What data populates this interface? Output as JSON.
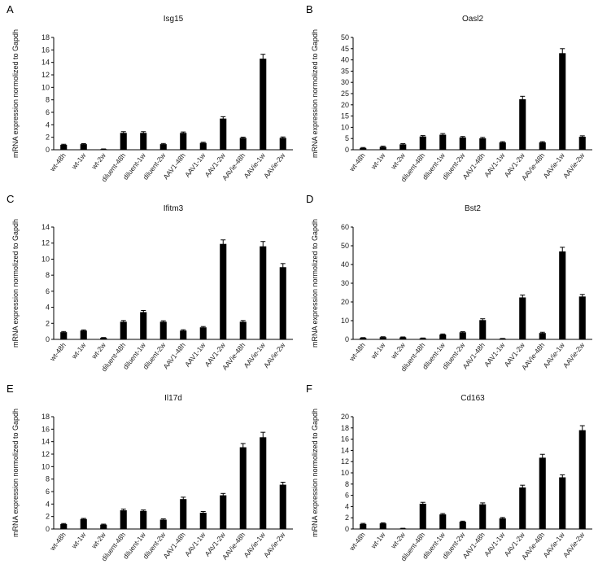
{
  "chart_data": [
    {
      "panel": "A",
      "type": "bar",
      "title": "Isg15",
      "ylabel": "mRNA expression normolized to Gapdh",
      "xlabel": "",
      "ylim": [
        0,
        18
      ],
      "yticks": [
        0,
        2,
        4,
        6,
        8,
        10,
        12,
        14,
        16,
        18
      ],
      "categories": [
        "wt-48h",
        "wt-1w",
        "wt-2w",
        "diluent-48h",
        "diluent-1w",
        "diluent-2w",
        "AAV1-48h",
        "AAV1-1w",
        "AAV1-2w",
        "AAVie-48h",
        "AAVie-1w",
        "AAVie-2w"
      ],
      "values": [
        0.8,
        0.9,
        0.1,
        2.7,
        2.7,
        0.9,
        2.7,
        1.1,
        5.0,
        1.9,
        14.6,
        1.9
      ],
      "errors": [
        0.08,
        0.08,
        0.03,
        0.2,
        0.2,
        0.1,
        0.15,
        0.1,
        0.3,
        0.12,
        0.7,
        0.15
      ]
    },
    {
      "panel": "B",
      "type": "bar",
      "title": "Oasl2",
      "ylabel": "mRNA expression normolized to Gapdh",
      "xlabel": "",
      "ylim": [
        0,
        50
      ],
      "yticks": [
        0,
        5,
        10,
        15,
        20,
        25,
        30,
        35,
        40,
        45,
        50
      ],
      "categories": [
        "wt-48h",
        "wt-1w",
        "wt-2w",
        "diluent-48h",
        "diluent-1w",
        "diluent-2w",
        "AAV1-48h",
        "AAV1-1w",
        "AAV1-2w",
        "AAVie-48h",
        "AAVie-1w",
        "AAVie-2w"
      ],
      "values": [
        0.8,
        1.3,
        2.4,
        5.9,
        6.7,
        5.5,
        5.1,
        3.3,
        22.5,
        3.3,
        43.0,
        5.8
      ],
      "errors": [
        0.2,
        0.3,
        0.3,
        0.4,
        0.5,
        0.4,
        0.4,
        0.3,
        1.3,
        0.3,
        2.0,
        0.4
      ]
    },
    {
      "panel": "C",
      "type": "bar",
      "title": "Ifitm3",
      "ylabel": "mRNA expression normolized to Gapdh",
      "xlabel": "",
      "ylim": [
        0,
        14
      ],
      "yticks": [
        0,
        2,
        4,
        6,
        8,
        10,
        12,
        14
      ],
      "categories": [
        "wt-48h",
        "wt-1w",
        "wt-2w",
        "diluent-48h",
        "diluent-1w",
        "diluent-2w",
        "AAV1-48h",
        "AAV1-1w",
        "AAV1-2w",
        "AAVie-48h",
        "AAVie-1w",
        "AAVie-2w"
      ],
      "values": [
        0.9,
        1.1,
        0.2,
        2.2,
        3.4,
        2.2,
        1.1,
        1.5,
        11.9,
        2.2,
        11.6,
        9.0
      ],
      "errors": [
        0.08,
        0.08,
        0.03,
        0.15,
        0.2,
        0.12,
        0.1,
        0.1,
        0.5,
        0.15,
        0.6,
        0.45
      ]
    },
    {
      "panel": "D",
      "type": "bar",
      "title": "Bst2",
      "ylabel": "mRNA expression normolized to Gapdh",
      "xlabel": "",
      "ylim": [
        0,
        60
      ],
      "yticks": [
        0,
        10,
        20,
        30,
        40,
        50,
        60
      ],
      "categories": [
        "wt-48h",
        "wt-1w",
        "wt-2w",
        "diluent-48h",
        "diluent-1w",
        "diluent-2w",
        "AAV1-48h",
        "AAV1-1w",
        "AAV1-2w",
        "AAVie-48h",
        "AAVie-1w",
        "AAVie-2w"
      ],
      "values": [
        0.8,
        1.2,
        1.1,
        0.6,
        2.6,
        3.8,
        10.3,
        0.4,
        22.4,
        3.4,
        47.0,
        22.9
      ],
      "errors": [
        0.15,
        0.2,
        0.2,
        0.15,
        0.3,
        0.3,
        0.7,
        0.1,
        1.3,
        0.4,
        2.2,
        1.1
      ]
    },
    {
      "panel": "E",
      "type": "bar",
      "title": "Il17d",
      "ylabel": "mRNA expression normolized to Gapdh",
      "xlabel": "",
      "ylim": [
        0,
        18
      ],
      "yticks": [
        0,
        2,
        4,
        6,
        8,
        10,
        12,
        14,
        16,
        18
      ],
      "categories": [
        "wt-48h",
        "wt-1w",
        "wt-2w",
        "diluent-48h",
        "diluent-1w",
        "diluent-2w",
        "AAV1-48h",
        "AAV1-1w",
        "AAV1-2w",
        "AAVie-48h",
        "AAVie-1w",
        "AAVie-2w"
      ],
      "values": [
        0.8,
        1.6,
        0.7,
        3.0,
        2.9,
        1.5,
        4.8,
        2.6,
        5.4,
        13.1,
        14.7,
        7.1
      ],
      "errors": [
        0.08,
        0.1,
        0.08,
        0.2,
        0.15,
        0.12,
        0.3,
        0.2,
        0.3,
        0.6,
        0.8,
        0.4
      ]
    },
    {
      "panel": "F",
      "type": "bar",
      "title": "Cd163",
      "ylabel": "mRNA expression normolized to Gapdh",
      "xlabel": "",
      "ylim": [
        0,
        20
      ],
      "yticks": [
        0,
        2,
        4,
        6,
        8,
        10,
        12,
        14,
        16,
        18,
        20
      ],
      "categories": [
        "wt-48h",
        "wt-1w",
        "wt-2w",
        "diluent-48h",
        "diluent-1w",
        "diluent-2w",
        "AAV1-48h",
        "AAV1-1w",
        "AAV1-2w",
        "AAVie-48h",
        "AAVie-1w",
        "AAVie-2w"
      ],
      "values": [
        0.9,
        1.0,
        0.1,
        4.5,
        2.6,
        1.3,
        4.4,
        1.9,
        7.4,
        12.7,
        9.2,
        17.6
      ],
      "errors": [
        0.1,
        0.1,
        0.03,
        0.25,
        0.15,
        0.1,
        0.25,
        0.15,
        0.4,
        0.6,
        0.45,
        0.8
      ]
    }
  ]
}
